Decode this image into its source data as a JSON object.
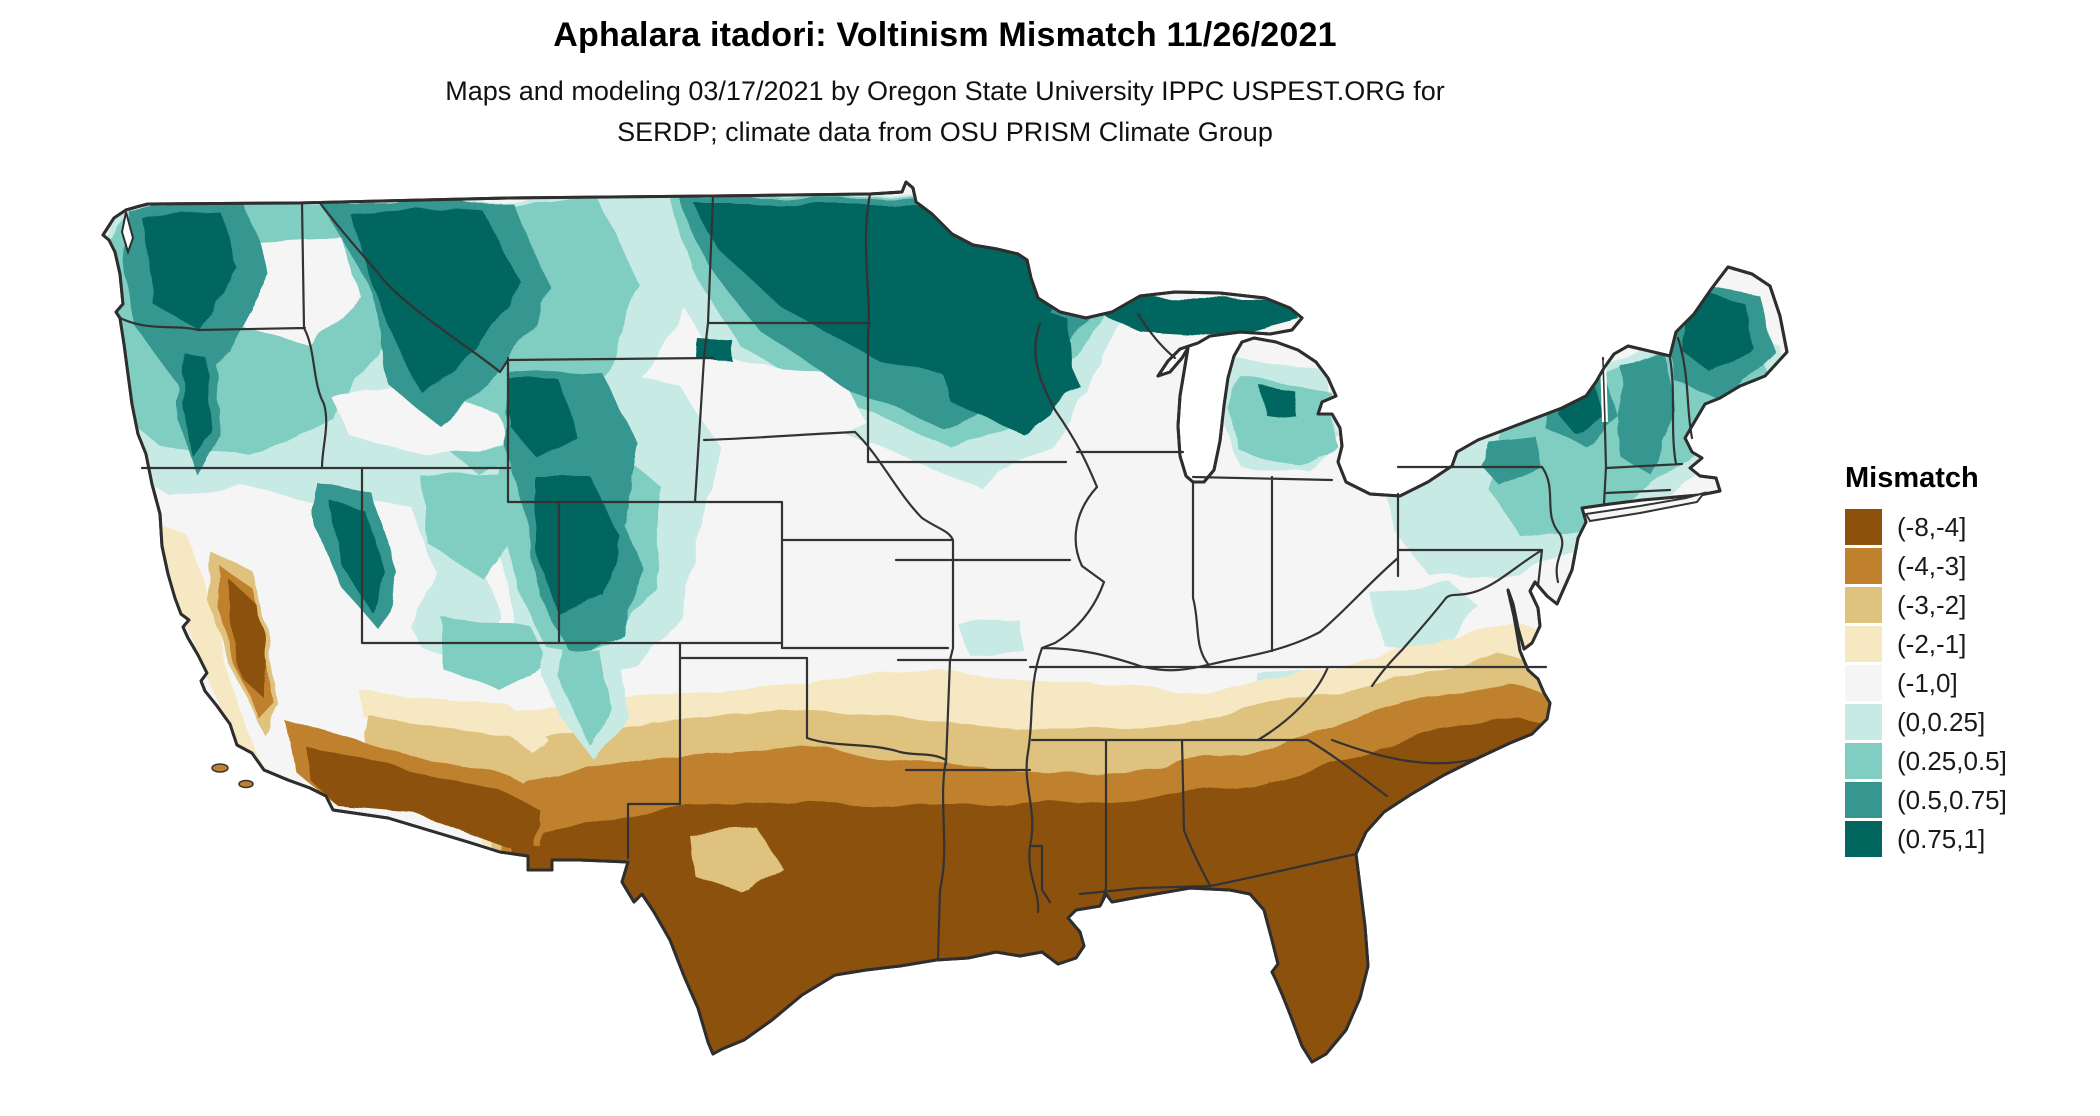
{
  "header": {
    "title": "Aphalara itadori: Voltinism Mismatch 11/26/2021",
    "subtitle_line1": "Maps and modeling 03/17/2021 by Oregon State University IPPC USPEST.ORG for",
    "subtitle_line2": "SERDP; climate data from OSU PRISM Climate Group"
  },
  "legend": {
    "title": "Mismatch",
    "items": [
      {
        "label": "(-8,-4]",
        "color": "#8c510a"
      },
      {
        "label": "(-4,-3]",
        "color": "#bf812d"
      },
      {
        "label": "(-3,-2]",
        "color": "#dfc27d"
      },
      {
        "label": "(-2,-1]",
        "color": "#f6e8c3"
      },
      {
        "label": "(-1,0]",
        "color": "#f5f5f5"
      },
      {
        "label": "(0,0.25]",
        "color": "#c7eae5"
      },
      {
        "label": "(0.25,0.5]",
        "color": "#80cdc1"
      },
      {
        "label": "(0.5,0.75]",
        "color": "#35978f"
      },
      {
        "label": "(0.75,1]",
        "color": "#01665e"
      }
    ]
  },
  "map": {
    "region": "Contiguous United States",
    "description": "Raster map of voltinism mismatch values; browns (negative mismatch) across the South and desert Southwest, teals (positive mismatch) across the northern states and mountain West",
    "outline_color": "#2e2e2e",
    "neutral_color": "#f5f5f5",
    "background_color": "#ffffff"
  }
}
